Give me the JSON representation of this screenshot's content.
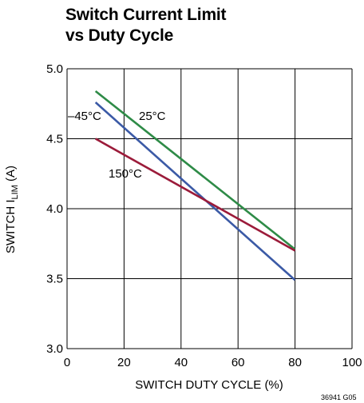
{
  "title": {
    "line1": "Switch Current Limit",
    "line2": "vs Duty Cycle"
  },
  "figure_code": "36941 G05",
  "colors": {
    "s25": "#2e8b47",
    "sm45": "#3b5aa6",
    "s150": "#9b1b3a",
    "grid": "#000000"
  },
  "chart_data": {
    "type": "line",
    "title": "Switch Current Limit vs Duty Cycle",
    "xlabel": "SWITCH DUTY CYCLE (%)",
    "ylabel_main": "SWITCH I",
    "ylabel_sub": "LIM",
    "ylabel_tail": " (A)",
    "xlim": [
      0,
      100
    ],
    "ylim": [
      3.0,
      5.0
    ],
    "xticks": [
      "0",
      "20",
      "40",
      "60",
      "80",
      "100"
    ],
    "yticks": [
      "3.0",
      "3.5",
      "4.0",
      "4.5",
      "5.0"
    ],
    "grid": true,
    "series": [
      {
        "name": "25°C",
        "x": [
          10,
          80
        ],
        "y": [
          4.84,
          3.71
        ]
      },
      {
        "name": "–45°C",
        "x": [
          10,
          80
        ],
        "y": [
          4.76,
          3.49
        ]
      },
      {
        "name": "150°C",
        "x": [
          10,
          80
        ],
        "y": [
          4.5,
          3.7
        ]
      }
    ]
  }
}
